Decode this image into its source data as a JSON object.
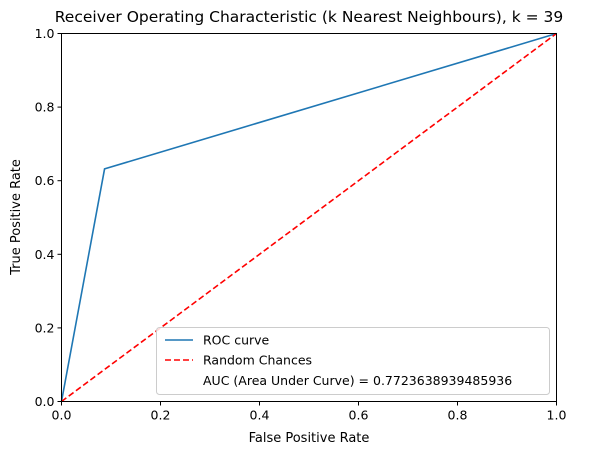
{
  "chart_data": {
    "type": "line",
    "title": "Receiver Operating Characteristic (k Nearest Neighbours), k = 39",
    "xlabel": "False Positive Rate",
    "ylabel": "True Positive Rate",
    "xlim": [
      0.0,
      1.0
    ],
    "ylim": [
      0.0,
      1.0
    ],
    "x_ticks": [
      "0.0",
      "0.2",
      "0.4",
      "0.6",
      "0.8",
      "1.0"
    ],
    "y_ticks": [
      "0.0",
      "0.2",
      "0.4",
      "0.6",
      "0.8",
      "1.0"
    ],
    "grid": false,
    "legend_position": "lower-right",
    "series": [
      {
        "name": "ROC curve",
        "style": "solid",
        "color": "#1f77b4",
        "x": [
          0.0,
          0.087,
          1.0
        ],
        "y": [
          0.0,
          0.632,
          1.0
        ]
      },
      {
        "name": "Random Chances",
        "style": "dashed",
        "color": "#ff0000",
        "x": [
          0.0,
          1.0
        ],
        "y": [
          0.0,
          1.0
        ]
      }
    ],
    "legend_text_entries": [
      "AUC (Area Under Curve) = 0.7723638939485936"
    ]
  }
}
